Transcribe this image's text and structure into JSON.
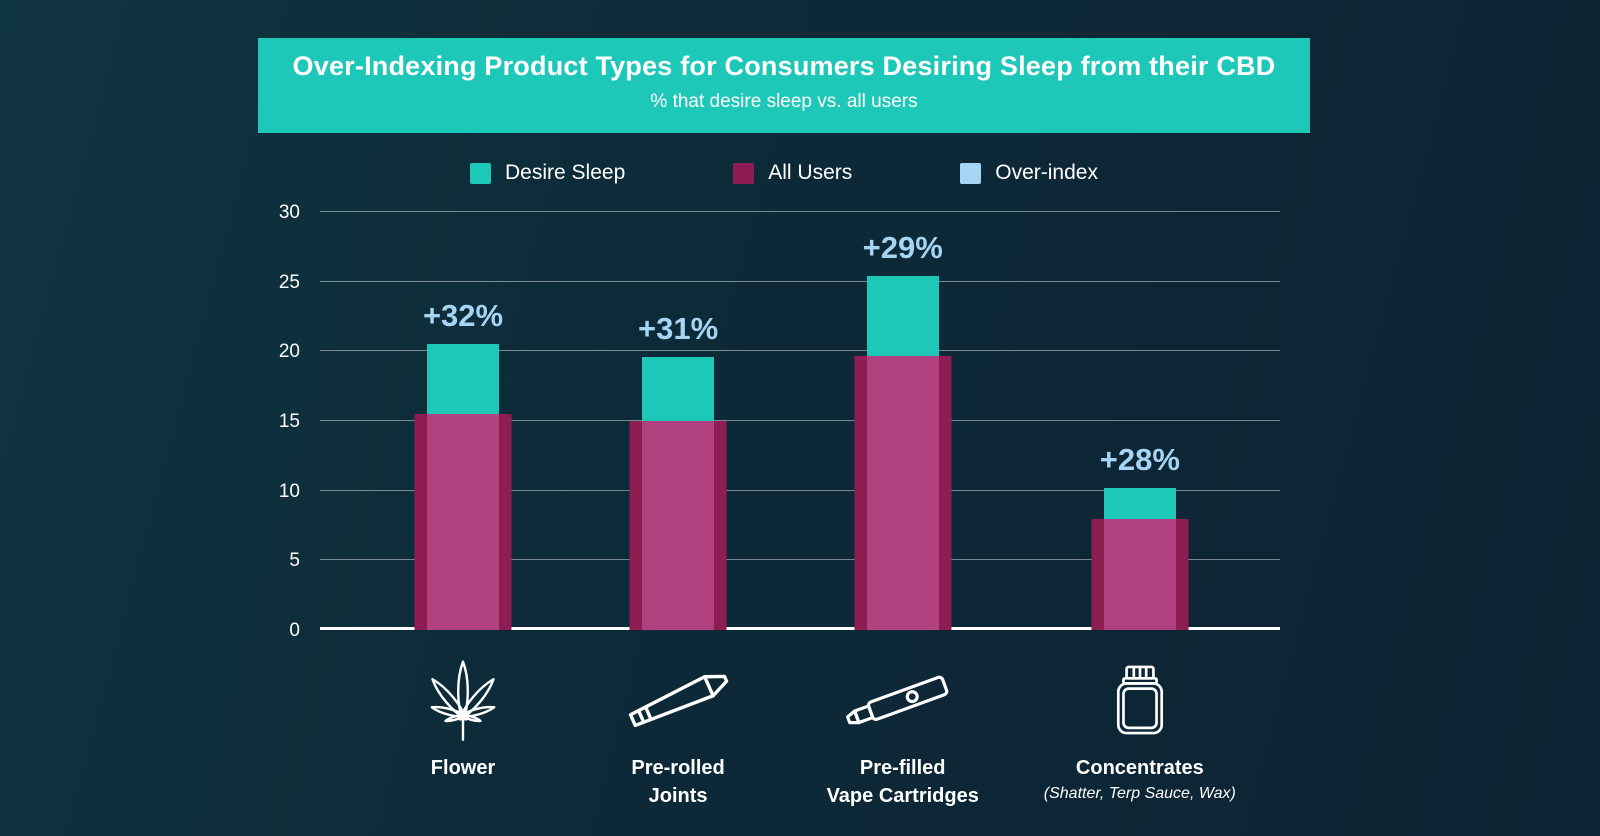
{
  "theme": {
    "banner_color": "#1dc8b8",
    "background_top_left": "#0f3540",
    "background_bottom_right": "#0d2232",
    "text_color": "#ffffff",
    "gridline_color": "rgba(255,255,255,0.45)"
  },
  "chart_data": {
    "type": "bar",
    "title": "Over-Indexing Product Types for Consumers Desiring Sleep from their CBD",
    "subtitle": "% that desire sleep vs. all users",
    "categories": [
      "Flower",
      "Pre-rolled Joints",
      "Pre-filled Vape Cartridges",
      "Concentrates"
    ],
    "series": [
      {
        "name": "Desire Sleep",
        "color": "#1dc8b8",
        "values": [
          20.5,
          19.6,
          25.4,
          10.2
        ]
      },
      {
        "name": "All Users",
        "color": "#8e1d53",
        "values": [
          15.5,
          15.0,
          19.7,
          8.0
        ]
      }
    ],
    "overlap_color": "#b0417e",
    "annotations": [
      "+32%",
      "+31%",
      "+29%",
      "+28%"
    ],
    "annotation_color": "#a6d5f3",
    "legend": [
      {
        "label": "Desire Sleep",
        "color": "#1dc8b8"
      },
      {
        "label": "All Users",
        "color": "#8e1d53"
      },
      {
        "label": "Over-index",
        "color": "#a6d5f3"
      }
    ],
    "legend_position": "top",
    "ylim": [
      0,
      30
    ],
    "yticks": [
      0,
      5,
      10,
      15,
      20,
      25,
      30
    ],
    "grid": true
  },
  "categories_display": [
    {
      "lines": [
        "Flower"
      ],
      "sublabel": "",
      "icon": "cannabis-leaf-icon"
    },
    {
      "lines": [
        "Pre-rolled",
        "Joints"
      ],
      "sublabel": "",
      "icon": "pre-rolled-joint-icon"
    },
    {
      "lines": [
        "Pre-filled",
        "Vape Cartridges"
      ],
      "sublabel": "",
      "icon": "vape-pen-icon"
    },
    {
      "lines": [
        "Concentrates"
      ],
      "sublabel": "(Shatter, Terp Sauce, Wax)",
      "icon": "concentrate-jar-icon"
    }
  ]
}
